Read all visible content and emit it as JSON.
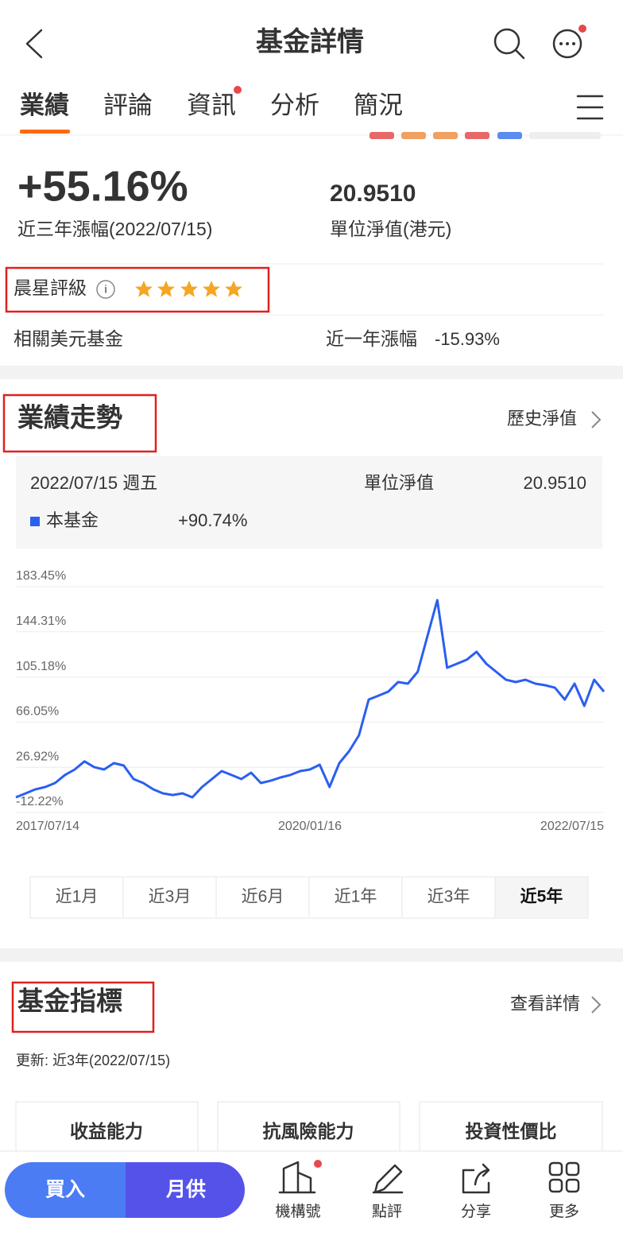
{
  "header": {
    "title": "基金詳情"
  },
  "tabs": [
    "業績",
    "評論",
    "資訊",
    "分析",
    "簡況"
  ],
  "summary": {
    "return_value": "+55.16%",
    "return_label": "近三年漲幅(2022/07/15)",
    "nav_value": "20.9510",
    "nav_label": "單位淨值(港元)",
    "rating_label": "晨星評級",
    "related_label": "相關美元基金",
    "one_year_label": "近一年漲幅",
    "one_year_value": "-15.93%"
  },
  "performance": {
    "title": "業績走勢",
    "link": "歷史淨值",
    "date": "2022/07/15 週五",
    "nav_label": "單位淨值",
    "nav_value": "20.9510",
    "fund_return": "+90.74%",
    "periods": [
      "近1月",
      "近3月",
      "近6月",
      "近1年",
      "近3年",
      "近5年"
    ]
  },
  "chart_data": {
    "type": "line",
    "categories": [
      "2017/07/14",
      null,
      null,
      null,
      null,
      null,
      null,
      null,
      null,
      null,
      null,
      null,
      null,
      null,
      null,
      null,
      null,
      null,
      null,
      null,
      null,
      null,
      null,
      null,
      null,
      null,
      null,
      null,
      null,
      null,
      "2020/01/16",
      null,
      null,
      null,
      null,
      null,
      null,
      null,
      null,
      null,
      null,
      null,
      null,
      null,
      null,
      null,
      null,
      null,
      null,
      null,
      null,
      null,
      null,
      null,
      null,
      null,
      null,
      null,
      null,
      null,
      "2022/07/15"
    ],
    "series": [
      {
        "name": "本基金",
        "color": "#2a5ff0",
        "values": [
          0.9,
          4.3,
          7.8,
          9.8,
          13.3,
          20.2,
          25,
          32,
          27,
          25,
          30.5,
          28.4,
          16.7,
          13.3,
          7.8,
          4.3,
          2.9,
          4.3,
          0.9,
          9.8,
          16.7,
          23.6,
          20.2,
          16.7,
          22.2,
          13.3,
          15.3,
          18.1,
          20.2,
          23.6,
          25,
          29.1,
          9.8,
          30.5,
          40.8,
          54.6,
          85.6,
          89,
          92.5,
          100.8,
          99.4,
          109.7,
          140.8,
          171.8,
          113.2,
          116.6,
          120.1,
          127,
          116.6,
          109.7,
          102.8,
          100.8,
          102.8,
          99.4,
          98,
          95.9,
          85.6,
          99.4,
          80.1,
          102.8,
          92.5
        ]
      }
    ],
    "ylim": [
      -12.22,
      183.45
    ],
    "yticks": [
      {
        "value": -12.22,
        "label": "-12.22%"
      },
      {
        "value": 26.92,
        "label": "26.92%"
      },
      {
        "value": 66.05,
        "label": "66.05%"
      },
      {
        "value": 105.18,
        "label": "105.18%"
      },
      {
        "value": 144.31,
        "label": "144.31%"
      },
      {
        "value": 183.45,
        "label": "183.45%"
      }
    ],
    "grid": true
  },
  "indicators": {
    "title": "基金指標",
    "link": "查看詳情",
    "updated": "更新: 近3年(2022/07/15)",
    "cards": [
      "收益能力",
      "抗風險能力",
      "投資性價比"
    ]
  },
  "bottom_bar": {
    "buy": "買入",
    "monthly": "月供",
    "items": [
      "機構號",
      "點評",
      "分享",
      "更多"
    ]
  }
}
